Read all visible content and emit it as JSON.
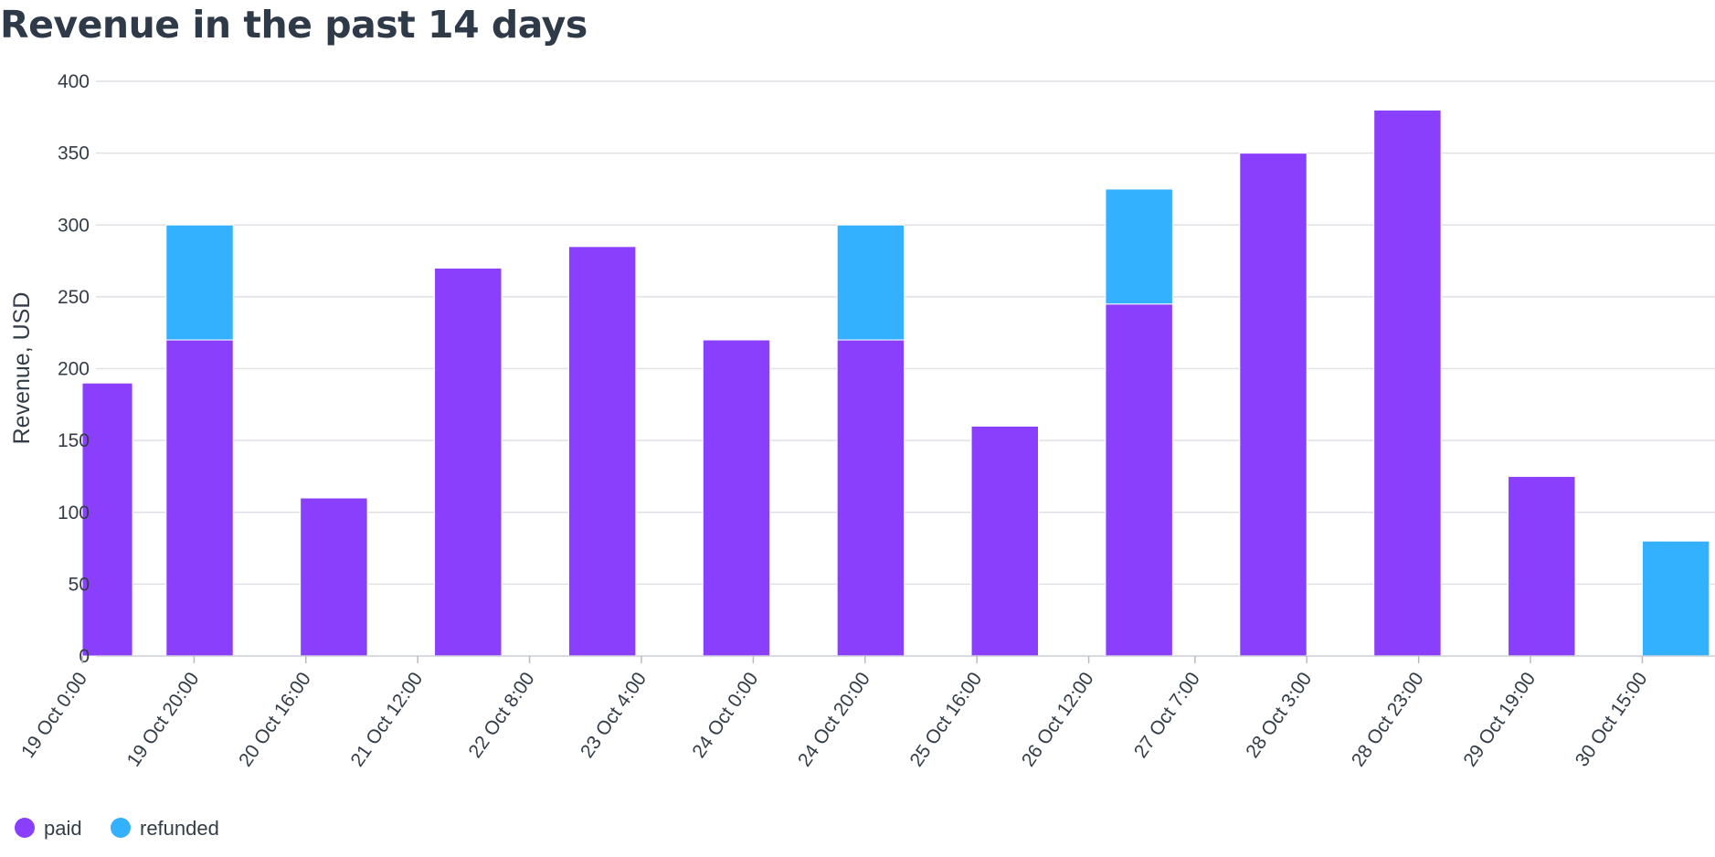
{
  "chart_data": {
    "type": "bar",
    "stacked": true,
    "title": "Revenue in the past 14 days",
    "xlabel": "",
    "ylabel": "Revenue, USD",
    "ylim": [
      0,
      400
    ],
    "yticks": [
      0,
      50,
      100,
      150,
      200,
      250,
      300,
      350,
      400
    ],
    "grid": true,
    "legend_position": "bottom-left",
    "x_start": "2023-10-19T00:00",
    "x_end": "2023-10-31T04:00",
    "xtick_labels": [
      {
        "t": "2023-10-19T00:00",
        "label": "19 Oct 0:00"
      },
      {
        "t": "2023-10-19T20:00",
        "label": "19 Oct 20:00"
      },
      {
        "t": "2023-10-20T16:00",
        "label": "20 Oct 16:00"
      },
      {
        "t": "2023-10-21T12:00",
        "label": "21 Oct 12:00"
      },
      {
        "t": "2023-10-22T08:00",
        "label": "22 Oct 8:00"
      },
      {
        "t": "2023-10-23T04:00",
        "label": "23 Oct 4:00"
      },
      {
        "t": "2023-10-24T00:00",
        "label": "24 Oct 0:00"
      },
      {
        "t": "2023-10-24T20:00",
        "label": "24 Oct 20:00"
      },
      {
        "t": "2023-10-25T16:00",
        "label": "25 Oct 16:00"
      },
      {
        "t": "2023-10-26T12:00",
        "label": "26 Oct 12:00"
      },
      {
        "t": "2023-10-27T07:00",
        "label": "27 Oct 7:00"
      },
      {
        "t": "2023-10-28T03:00",
        "label": "28 Oct 3:00"
      },
      {
        "t": "2023-10-28T23:00",
        "label": "28 Oct 23:00"
      },
      {
        "t": "2023-10-29T19:00",
        "label": "29 Oct 19:00"
      },
      {
        "t": "2023-10-30T15:00",
        "label": "30 Oct 15:00"
      }
    ],
    "bars": [
      {
        "start": "2023-10-18T21:00",
        "end": "2023-10-19T09:00",
        "paid": 190,
        "refunded": 0
      },
      {
        "start": "2023-10-19T15:00",
        "end": "2023-10-20T03:00",
        "paid": 220,
        "refunded": 80
      },
      {
        "start": "2023-10-20T15:00",
        "end": "2023-10-21T03:00",
        "paid": 110,
        "refunded": 0
      },
      {
        "start": "2023-10-21T15:00",
        "end": "2023-10-22T03:00",
        "paid": 270,
        "refunded": 0
      },
      {
        "start": "2023-10-22T15:00",
        "end": "2023-10-23T03:00",
        "paid": 285,
        "refunded": 0
      },
      {
        "start": "2023-10-23T15:00",
        "end": "2023-10-24T03:00",
        "paid": 220,
        "refunded": 0
      },
      {
        "start": "2023-10-24T15:00",
        "end": "2023-10-25T03:00",
        "paid": 220,
        "refunded": 80
      },
      {
        "start": "2023-10-25T15:00",
        "end": "2023-10-26T03:00",
        "paid": 160,
        "refunded": 0
      },
      {
        "start": "2023-10-26T15:00",
        "end": "2023-10-27T03:00",
        "paid": 245,
        "refunded": 80
      },
      {
        "start": "2023-10-27T15:00",
        "end": "2023-10-28T03:00",
        "paid": 350,
        "refunded": 0
      },
      {
        "start": "2023-10-28T15:00",
        "end": "2023-10-29T03:00",
        "paid": 380,
        "refunded": 0
      },
      {
        "start": "2023-10-29T15:00",
        "end": "2023-10-30T03:00",
        "paid": 125,
        "refunded": 0
      },
      {
        "start": "2023-10-30T15:00",
        "end": "2023-10-31T03:00",
        "paid": 0,
        "refunded": 80
      }
    ],
    "series": [
      {
        "name": "paid",
        "color": "#8a3ffc"
      },
      {
        "name": "refunded",
        "color": "#33b1ff"
      }
    ]
  }
}
